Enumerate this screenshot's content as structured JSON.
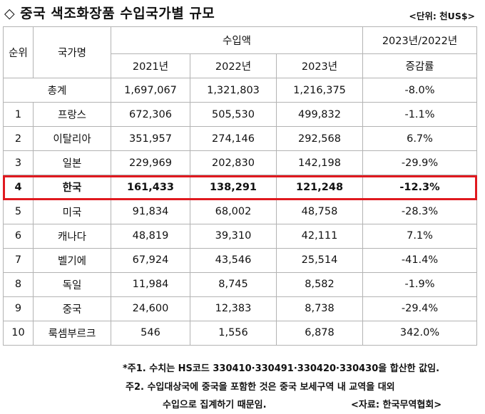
{
  "title": "◇ 중국 색조화장품 수입국가별 규모",
  "unit": "<단위: 천US$>",
  "table": {
    "headers": {
      "rank": "순위",
      "country": "국가명",
      "imports": "수입액",
      "change": "2023년/2022년",
      "change_sub": "증감률",
      "years": [
        "2021년",
        "2022년",
        "2023년"
      ]
    },
    "total": {
      "label": "총계",
      "y2021": "1,697,067",
      "y2022": "1,321,803",
      "y2023": "1,216,375",
      "change": "-8.0%"
    },
    "rows": [
      {
        "rank": "1",
        "country": "프랑스",
        "y2021": "672,306",
        "y2022": "505,530",
        "y2023": "499,832",
        "change": "-1.1%"
      },
      {
        "rank": "2",
        "country": "이탈리아",
        "y2021": "351,957",
        "y2022": "274,146",
        "y2023": "292,568",
        "change": "6.7%"
      },
      {
        "rank": "3",
        "country": "일본",
        "y2021": "229,969",
        "y2022": "202,830",
        "y2023": "142,198",
        "change": "-29.9%"
      },
      {
        "rank": "4",
        "country": "한국",
        "y2021": "161,433",
        "y2022": "138,291",
        "y2023": "121,248",
        "change": "-12.3%"
      },
      {
        "rank": "5",
        "country": "미국",
        "y2021": "91,834",
        "y2022": "68,002",
        "y2023": "48,758",
        "change": "-28.3%"
      },
      {
        "rank": "6",
        "country": "캐나다",
        "y2021": "48,819",
        "y2022": "39,310",
        "y2023": "42,111",
        "change": "7.1%"
      },
      {
        "rank": "7",
        "country": "벨기에",
        "y2021": "67,924",
        "y2022": "43,546",
        "y2023": "25,514",
        "change": "-41.4%"
      },
      {
        "rank": "8",
        "country": "독일",
        "y2021": "11,984",
        "y2022": "8,745",
        "y2023": "8,582",
        "change": "-1.9%"
      },
      {
        "rank": "9",
        "country": "중국",
        "y2021": "24,600",
        "y2022": "12,383",
        "y2023": "8,738",
        "change": "-29.4%"
      },
      {
        "rank": "10",
        "country": "룩셈부르크",
        "y2021": "546",
        "y2022": "1,556",
        "y2023": "6,878",
        "change": "342.0%"
      }
    ]
  },
  "notes": {
    "note1": "*주1. 수치는 HS코드 330410·330491·330420·330430을 합산한 값임.",
    "note2_line1": "주2. 수입대상국에 중국을 포함한 것은 중국 보세구역 내 교역을 대외",
    "note2_line2": "수입으로 집계하기 때문임.",
    "source": "<자료: 한국무역협회>"
  },
  "colors": {
    "highlight_border": "#e0191f",
    "grid": "#b3b3b3"
  }
}
